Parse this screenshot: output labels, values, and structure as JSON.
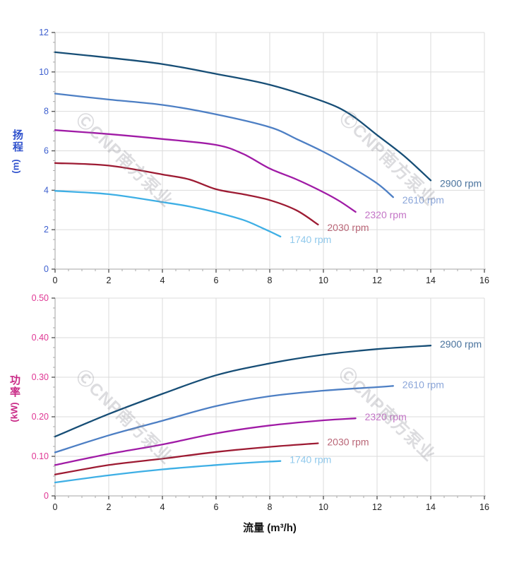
{
  "watermark": {
    "text": "ⒸCNP南方泵业"
  },
  "x_axis_title": "流量 (m³/h)",
  "chart_data": [
    {
      "type": "line",
      "title": "",
      "ylabel_cjk": "扬程",
      "ylabel_unit": "(m)",
      "xlabel": "流量 (m³/h)",
      "xlim": [
        0,
        16
      ],
      "ylim": [
        0,
        12
      ],
      "x_major_step": 2,
      "x_minor_step": 0.5,
      "y_major_step": 2,
      "y_minor_step": 0.5,
      "x_tick_labels": [
        "0",
        "2",
        "4",
        "6",
        "8",
        "10",
        "12",
        "14",
        "16"
      ],
      "y_tick_labels": [
        "0",
        "2",
        "4",
        "6",
        "8",
        "10",
        "12"
      ],
      "grid": true,
      "legend_position": "at-line-end",
      "tick_label_color": "#3d5fcf",
      "series": [
        {
          "name": "2900 rpm",
          "color": "#174e76",
          "label_color": "#4a739d",
          "points": [
            [
              0,
              11.0
            ],
            [
              2,
              10.72
            ],
            [
              4,
              10.4
            ],
            [
              6,
              9.9
            ],
            [
              8,
              9.35
            ],
            [
              10,
              8.5
            ],
            [
              11,
              7.85
            ],
            [
              12,
              6.8
            ],
            [
              13,
              5.75
            ],
            [
              14,
              4.5
            ]
          ]
        },
        {
          "name": "2610 rpm",
          "color": "#4d7fc4",
          "label_color": "#8ba6d9",
          "points": [
            [
              0,
              8.9
            ],
            [
              2,
              8.6
            ],
            [
              4,
              8.33
            ],
            [
              6,
              7.85
            ],
            [
              8,
              7.2
            ],
            [
              9,
              6.6
            ],
            [
              10,
              5.95
            ],
            [
              11,
              5.2
            ],
            [
              12,
              4.35
            ],
            [
              12.6,
              3.65
            ]
          ]
        },
        {
          "name": "2320 rpm",
          "color": "#a01ba6",
          "label_color": "#c374c6",
          "points": [
            [
              0,
              7.05
            ],
            [
              2,
              6.85
            ],
            [
              4,
              6.6
            ],
            [
              6,
              6.3
            ],
            [
              7,
              5.85
            ],
            [
              8,
              5.1
            ],
            [
              9,
              4.55
            ],
            [
              10,
              3.9
            ],
            [
              10.6,
              3.45
            ],
            [
              11.2,
              2.9
            ]
          ]
        },
        {
          "name": "2030 rpm",
          "color": "#9d1b33",
          "label_color": "#b96677",
          "points": [
            [
              0,
              5.38
            ],
            [
              2,
              5.25
            ],
            [
              4,
              4.8
            ],
            [
              5,
              4.55
            ],
            [
              6,
              4.05
            ],
            [
              7,
              3.8
            ],
            [
              8,
              3.5
            ],
            [
              9,
              2.98
            ],
            [
              9.8,
              2.26
            ]
          ]
        },
        {
          "name": "1740 rpm",
          "color": "#3eafe5",
          "label_color": "#90c9ec",
          "points": [
            [
              0,
              3.97
            ],
            [
              2,
              3.8
            ],
            [
              4,
              3.4
            ],
            [
              5,
              3.18
            ],
            [
              6,
              2.88
            ],
            [
              7,
              2.5
            ],
            [
              7.7,
              2.1
            ],
            [
              8.4,
              1.65
            ]
          ]
        }
      ]
    },
    {
      "type": "line",
      "title": "",
      "ylabel_cjk": "功率",
      "ylabel_unit": "(kW)",
      "xlabel": "流量 (m³/h)",
      "xlim": [
        0,
        16
      ],
      "ylim": [
        0,
        0.5
      ],
      "x_major_step": 2,
      "x_minor_step": 0.5,
      "y_major_step": 0.1,
      "y_minor_step": 0.025,
      "x_tick_labels": [
        "0",
        "2",
        "4",
        "6",
        "8",
        "10",
        "12",
        "14",
        "16"
      ],
      "y_tick_labels": [
        "0",
        "0.10",
        "0.20",
        "0.30",
        "0.40",
        "0.50"
      ],
      "grid": true,
      "legend_position": "at-line-end",
      "tick_label_color": "#df3794",
      "series": [
        {
          "name": "2900 rpm",
          "color": "#174e76",
          "label_color": "#4a739d",
          "points": [
            [
              0,
              0.15
            ],
            [
              2,
              0.207
            ],
            [
              4,
              0.258
            ],
            [
              6,
              0.305
            ],
            [
              8,
              0.335
            ],
            [
              10,
              0.357
            ],
            [
              12,
              0.371
            ],
            [
              14,
              0.38
            ]
          ]
        },
        {
          "name": "2610 rpm",
          "color": "#4d7fc4",
          "label_color": "#8ba6d9",
          "points": [
            [
              0,
              0.11
            ],
            [
              2,
              0.153
            ],
            [
              4,
              0.19
            ],
            [
              6,
              0.227
            ],
            [
              8,
              0.252
            ],
            [
              10,
              0.266
            ],
            [
              12,
              0.275
            ],
            [
              12.6,
              0.278
            ]
          ]
        },
        {
          "name": "2320 rpm",
          "color": "#a01ba6",
          "label_color": "#c374c6",
          "points": [
            [
              0,
              0.078
            ],
            [
              2,
              0.106
            ],
            [
              4,
              0.13
            ],
            [
              6,
              0.158
            ],
            [
              8,
              0.178
            ],
            [
              10,
              0.191
            ],
            [
              11.2,
              0.196
            ]
          ]
        },
        {
          "name": "2030 rpm",
          "color": "#9d1b33",
          "label_color": "#b96677",
          "points": [
            [
              0,
              0.054
            ],
            [
              2,
              0.078
            ],
            [
              4,
              0.094
            ],
            [
              6,
              0.111
            ],
            [
              8,
              0.124
            ],
            [
              9.8,
              0.133
            ]
          ]
        },
        {
          "name": "1740 rpm",
          "color": "#3eafe5",
          "label_color": "#90c9ec",
          "points": [
            [
              0,
              0.034
            ],
            [
              2,
              0.052
            ],
            [
              4,
              0.067
            ],
            [
              6,
              0.078
            ],
            [
              7.5,
              0.085
            ],
            [
              8.4,
              0.088
            ]
          ]
        }
      ]
    }
  ]
}
